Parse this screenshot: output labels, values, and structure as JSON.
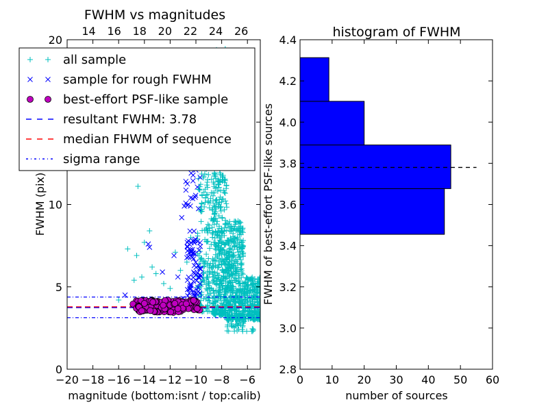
{
  "chart_data": [
    {
      "type": "scatter",
      "title": "FWHM vs magnitudes",
      "xlabel": "magnitude (bottom:isnt / top:calib)",
      "ylabel": "FWHM (pix)",
      "xlim": [
        -20,
        -5
      ],
      "ylim": [
        0,
        20
      ],
      "top_xlim": [
        12.3,
        27.5
      ],
      "x_ticks": [
        -20,
        -18,
        -16,
        -14,
        -12,
        -10,
        -8,
        -6
      ],
      "x_tick_labels": [
        "−20",
        "−18",
        "−16",
        "−14",
        "−12",
        "−10",
        "−8",
        "−6"
      ],
      "y_ticks": [
        0,
        5,
        10,
        15,
        20
      ],
      "y_tick_labels": [
        "0",
        "5",
        "10",
        "15",
        "20"
      ],
      "top_ticks": [
        14,
        16,
        18,
        20,
        22,
        24,
        26
      ],
      "top_tick_labels": [
        "14",
        "16",
        "18",
        "20",
        "22",
        "24",
        "26"
      ],
      "resultant_fwhm": 3.78,
      "median_fwhm": 3.78,
      "sigma_range": [
        3.13,
        4.38
      ],
      "series": [
        {
          "name": "all sample",
          "marker": "+",
          "color": "#00bfbf",
          "points": [
            [
              -15.3,
              7.3
            ],
            [
              -14.8,
              5.4
            ],
            [
              -14.5,
              11.1
            ],
            [
              -14.2,
              5.6
            ],
            [
              -14.0,
              7.7
            ],
            [
              -13.6,
              8.4
            ],
            [
              -14.6,
              6.9
            ],
            [
              -13.4,
              6.2
            ],
            [
              -12.5,
              5.2
            ],
            [
              -12.0,
              4.9
            ],
            [
              -11.2,
              6.0
            ],
            [
              -10.7,
              6.5
            ],
            [
              -16.0,
              4.2
            ],
            [
              -13.1,
              5.8
            ],
            [
              -11.6,
              7.1
            ],
            [
              -10.4,
              8.0
            ]
          ],
          "clouds": [
            {
              "x": [
                -9.9,
                -8.7
              ],
              "y": [
                3.5,
                12.5
              ],
              "count": 170
            },
            {
              "x": [
                -8.7,
                -7.6
              ],
              "y": [
                3.3,
                19.5
              ],
              "count": 560
            },
            {
              "x": [
                -7.6,
                -6.3
              ],
              "y": [
                3.0,
                9.0
              ],
              "count": 420
            },
            {
              "x": [
                -6.3,
                -5.0
              ],
              "y": [
                3.0,
                5.6
              ],
              "count": 250
            },
            {
              "x": [
                -7.6,
                -5.5
              ],
              "y": [
                2.3,
                3.4
              ],
              "count": 40
            }
          ]
        },
        {
          "name": "sample for rough FWHM",
          "marker": "x",
          "color": "#0000ff",
          "points": [
            [
              -15.5,
              4.5
            ],
            [
              -13.7,
              7.6
            ],
            [
              -13.6,
              7.4
            ],
            [
              -12.6,
              5.9
            ],
            [
              -12.2,
              4.1
            ],
            [
              -11.7,
              6.9
            ],
            [
              -11.4,
              5.6
            ],
            [
              -11.0,
              4.3
            ],
            [
              -11.1,
              9.2
            ],
            [
              -10.9,
              9.9
            ]
          ],
          "clouds": [
            {
              "x": [
                -10.9,
                -9.6
              ],
              "y": [
                8.0,
                13.0
              ],
              "count": 26
            },
            {
              "x": [
                -10.7,
                -9.6
              ],
              "y": [
                4.4,
                8.0
              ],
              "count": 70
            }
          ]
        },
        {
          "name": "best-effort PSF-like sample",
          "marker": "o",
          "color": "#bf00bf",
          "clouds": [
            {
              "x": [
                -14.9,
                -9.7
              ],
              "y": [
                3.45,
                4.2
              ],
              "count": 150
            }
          ]
        },
        {
          "name": "resultant FWHM: 3.78",
          "style": "dashed",
          "color": "#0000ff",
          "y": 3.78
        },
        {
          "name": "median FHWM of sequence",
          "style": "dashed",
          "color": "#ff0000",
          "y": 3.78
        },
        {
          "name": "sigma range",
          "style": "dashdot",
          "color": "#0000ff",
          "y_values": [
            3.13,
            4.38
          ]
        }
      ],
      "legend": {
        "placement": "top-left",
        "entries": [
          "all sample",
          "sample for rough FWHM",
          "best-effort PSF-like sample",
          "resultant FWHM: 3.78",
          "median FHWM of sequence",
          "sigma range"
        ]
      }
    },
    {
      "type": "bar",
      "orientation": "horizontal",
      "title": "histogram of FWHM",
      "xlabel": "number of sources",
      "ylabel": "FWHM of best-effort PSF-like sources",
      "xlim": [
        0,
        60
      ],
      "ylim": [
        2.8,
        4.4
      ],
      "x_ticks": [
        0,
        10,
        20,
        30,
        40,
        50,
        60
      ],
      "x_tick_labels": [
        "0",
        "10",
        "20",
        "30",
        "40",
        "50",
        "60"
      ],
      "y_ticks": [
        2.8,
        3.0,
        3.2,
        3.4,
        3.6,
        3.8,
        4.0,
        4.2,
        4.4
      ],
      "y_tick_labels": [
        "2.8",
        "3.0",
        "3.2",
        "3.4",
        "3.6",
        "3.8",
        "4.0",
        "4.2",
        "4.4"
      ],
      "bar_color": "#0000ff",
      "bins": [
        {
          "low": 3.455,
          "high": 3.677,
          "count": 45
        },
        {
          "low": 3.677,
          "high": 3.889,
          "count": 47
        },
        {
          "low": 3.889,
          "high": 4.101,
          "count": 20
        },
        {
          "low": 4.101,
          "high": 4.313,
          "count": 9
        }
      ],
      "reference_line": {
        "y": 3.78,
        "style": "dashed",
        "color": "#000000",
        "x_range": [
          0,
          55
        ]
      }
    }
  ]
}
